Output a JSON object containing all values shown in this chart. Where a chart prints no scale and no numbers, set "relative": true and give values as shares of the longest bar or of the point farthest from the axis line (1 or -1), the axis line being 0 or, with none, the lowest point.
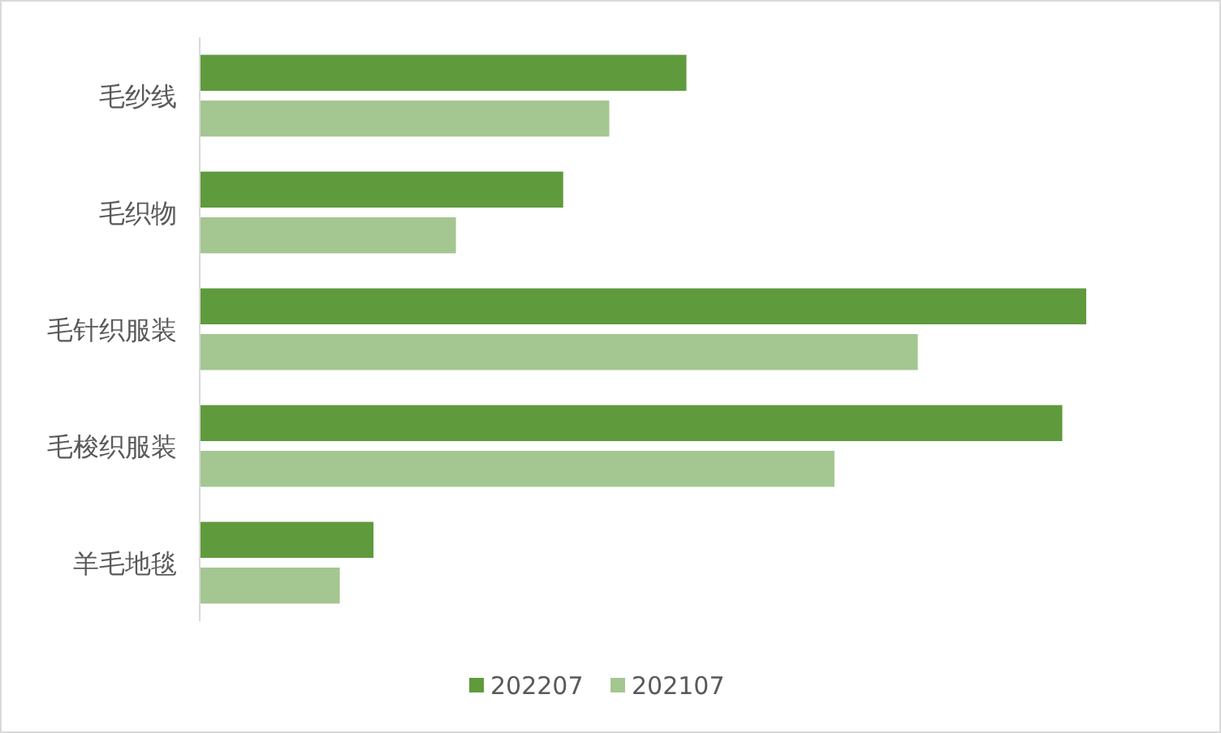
{
  "chart_data": {
    "type": "bar",
    "orientation": "horizontal",
    "relative": true,
    "legend": "bottom",
    "categories": [
      "毛纱线",
      "毛织物",
      "毛针织服装",
      "毛梭织服装",
      "羊毛地毯"
    ],
    "series": [
      {
        "name": "202207",
        "color": "#5f9a3c",
        "values": [
          0.549,
          0.41,
          1,
          0.973,
          0.196
        ]
      },
      {
        "name": "202107",
        "color": "#a4c690",
        "values": [
          0.462,
          0.289,
          0.81,
          0.716,
          0.158
        ]
      }
    ]
  }
}
